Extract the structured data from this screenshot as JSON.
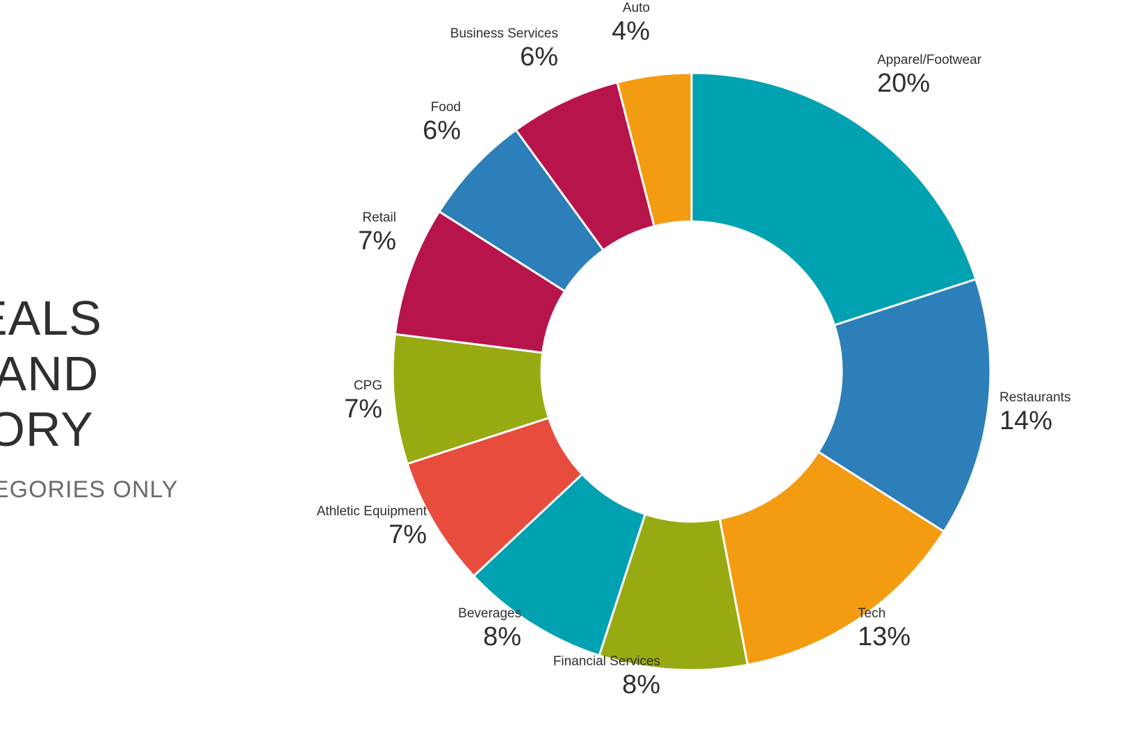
{
  "heading": {
    "lines": [
      "EALS",
      "RAND",
      "GORY"
    ],
    "subtitle": "EGORIES ONLY"
  },
  "chart_data": {
    "type": "pie",
    "variant": "donut",
    "title": "",
    "categories": [
      "Apparel/Footwear",
      "Restaurants",
      "Tech",
      "Financial Services",
      "Beverages",
      "Athletic Equipment",
      "CPG",
      "Retail",
      "Food",
      "Business Services",
      "Auto"
    ],
    "values": [
      20,
      14,
      13,
      8,
      8,
      7,
      7,
      7,
      6,
      6,
      4
    ],
    "labels": [
      "20%",
      "14%",
      "13%",
      "8%",
      "8%",
      "7%",
      "7%",
      "7%",
      "6%",
      "6%",
      "4%"
    ],
    "unit": "%",
    "colors": [
      "#00a1b1",
      "#2c7fb8",
      "#f39c12",
      "#98aa12",
      "#00a1b1",
      "#e74c3c",
      "#98aa12",
      "#b8144c",
      "#2c7fb8",
      "#b8144c",
      "#f39c12"
    ],
    "legend": "none"
  }
}
